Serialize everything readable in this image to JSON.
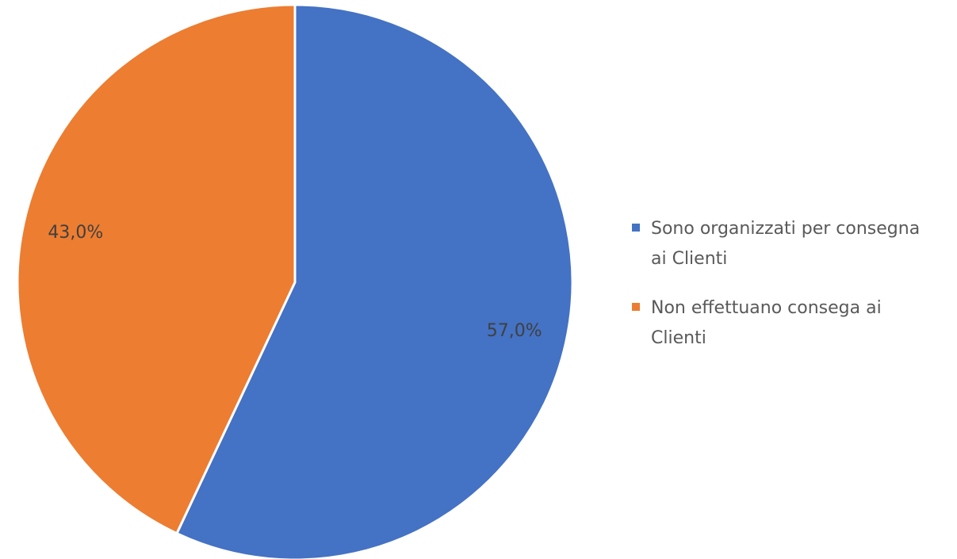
{
  "chart_data": {
    "type": "pie",
    "categories": [
      "Sono organizzati per consegna ai Clienti",
      "Non effettuano consega ai Clienti"
    ],
    "values": [
      57.0,
      43.0
    ],
    "value_labels": [
      "57,0%",
      "43,0%"
    ],
    "colors": [
      "#4472c4",
      "#ed7d31"
    ]
  }
}
